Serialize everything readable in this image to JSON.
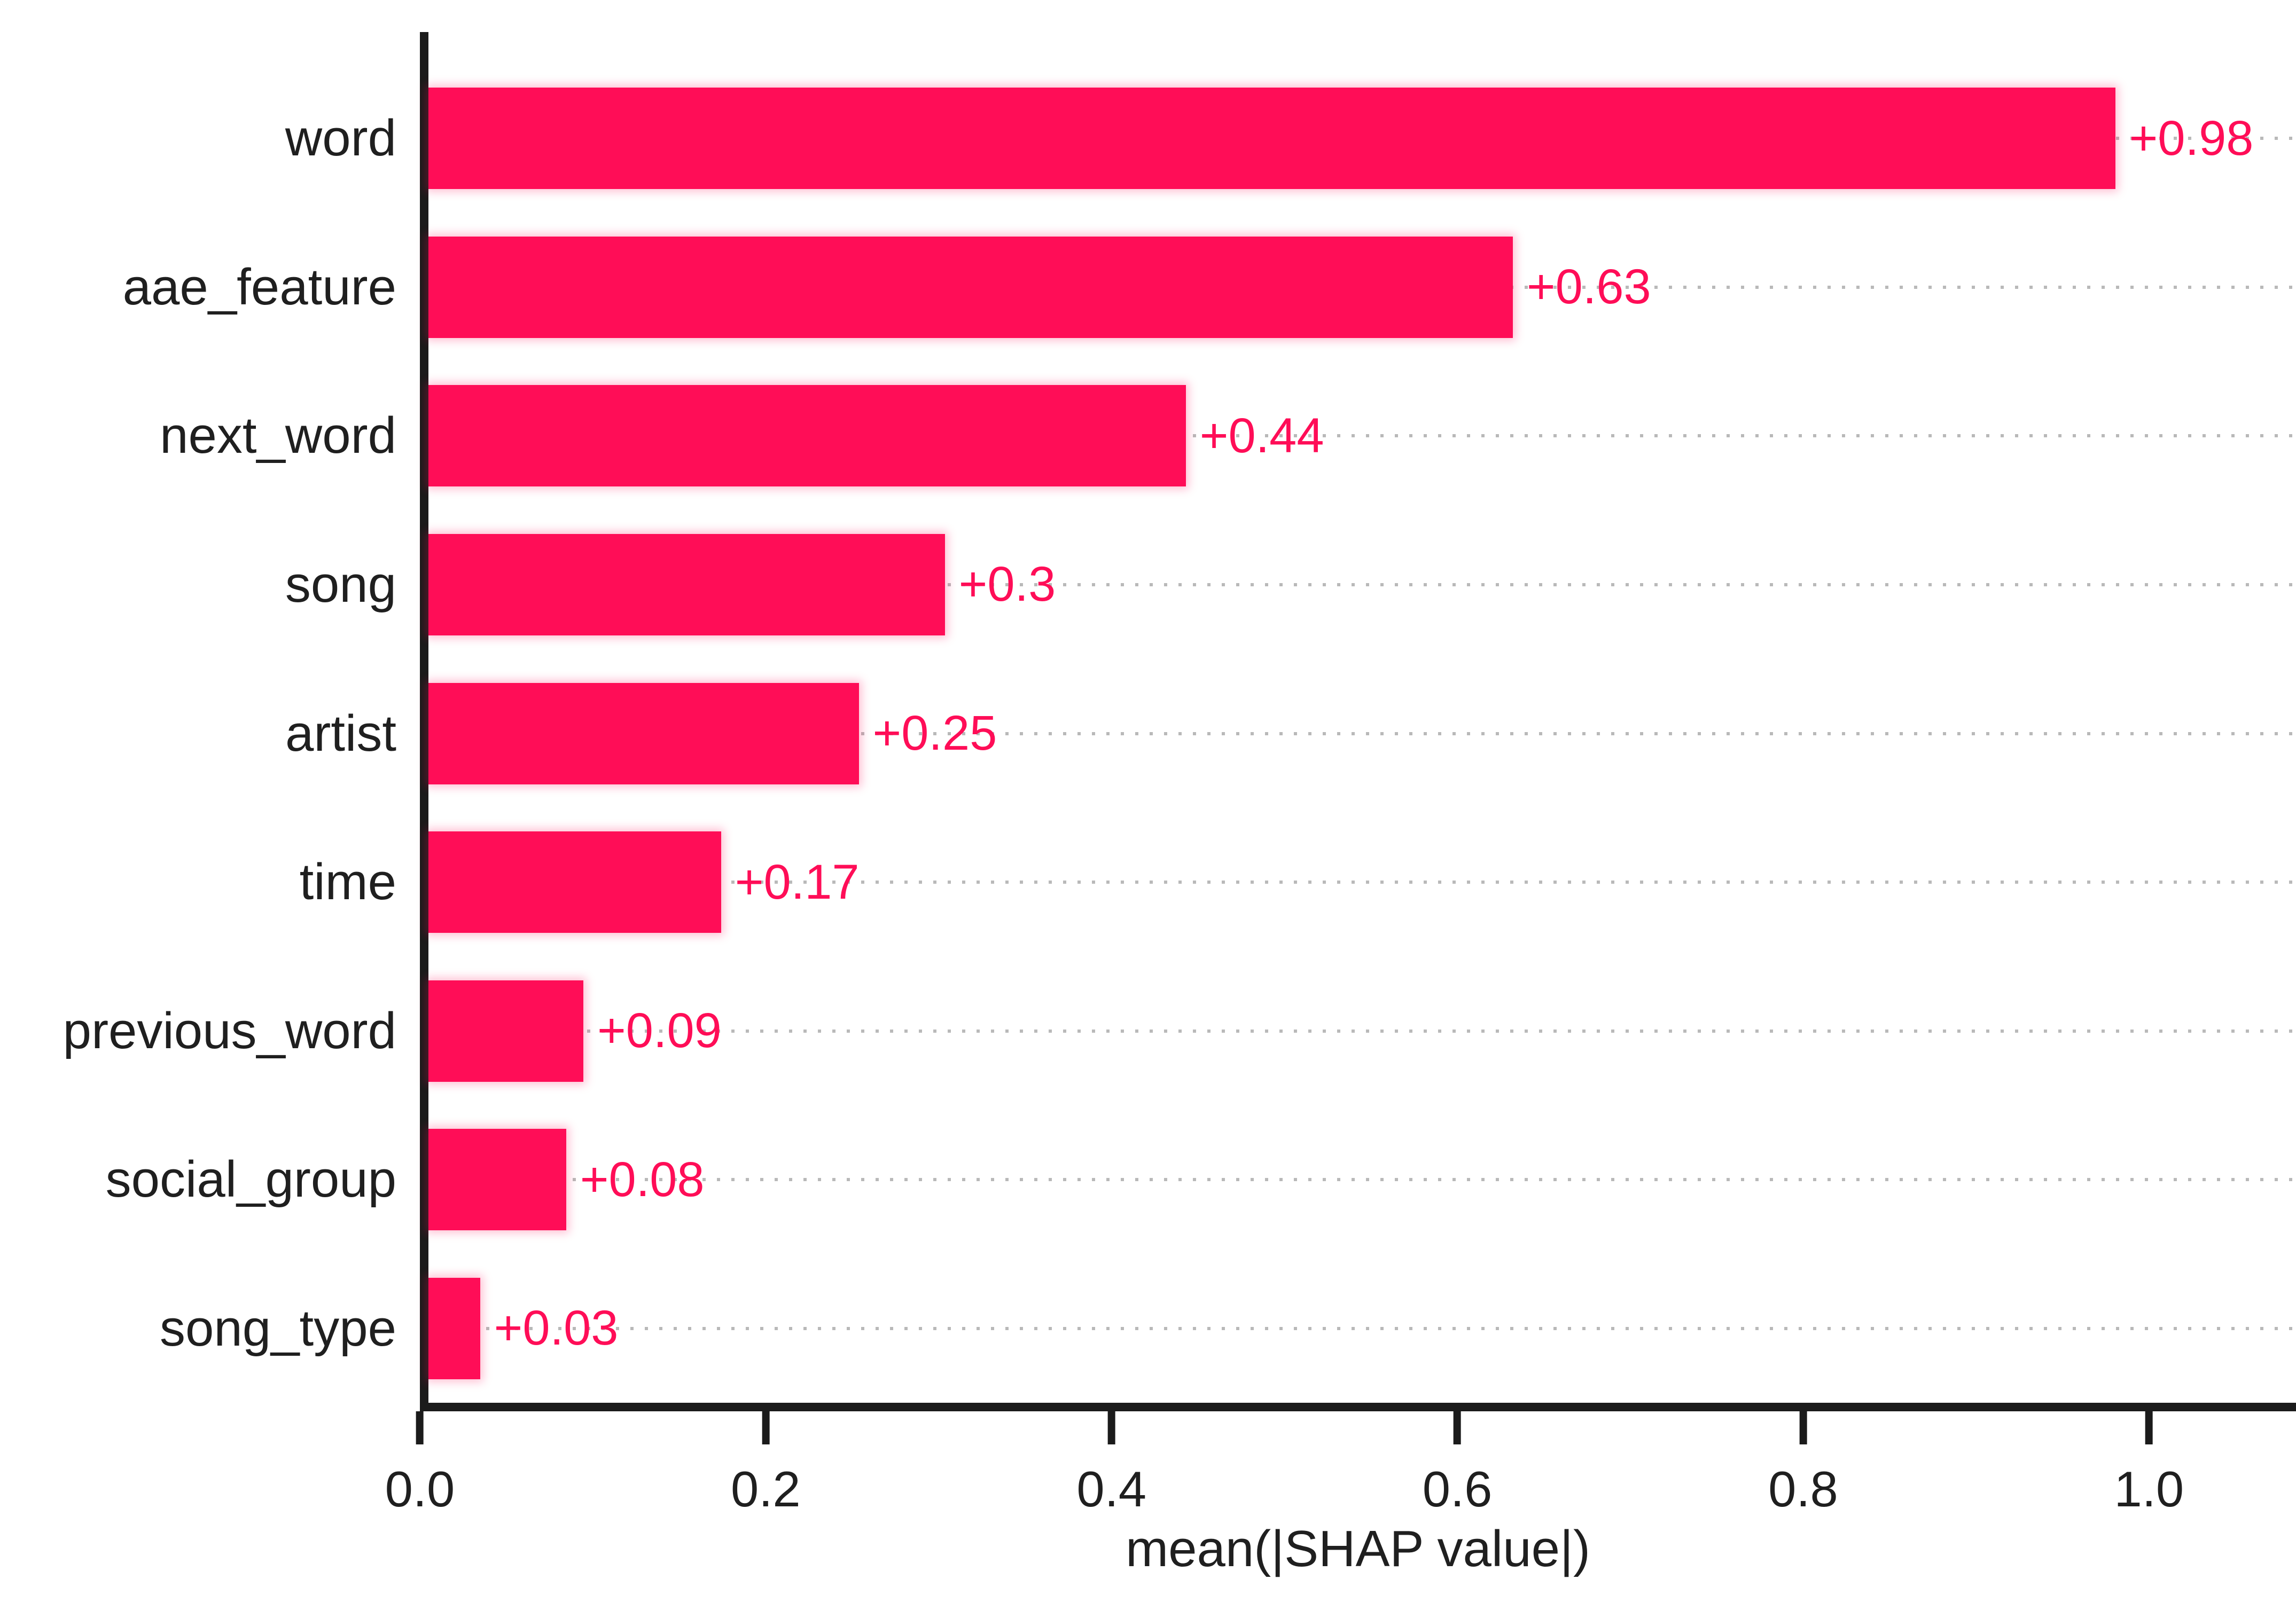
{
  "figure": {
    "background": "#ffffff",
    "bar_color": "#ff0d57",
    "grid_dot_color": "#b9b9b9",
    "axis_color": "#1b1b1b",
    "text_color": "#1f1f1f"
  },
  "chart_data": {
    "type": "bar",
    "orientation": "horizontal",
    "title": "",
    "xlabel": "mean(|SHAP value|)",
    "ylabel": "",
    "categories": [
      "word",
      "aae_feature",
      "next_word",
      "song",
      "artist",
      "time",
      "previous_word",
      "social_group",
      "song_type"
    ],
    "values": [
      0.98,
      0.63,
      0.44,
      0.3,
      0.25,
      0.17,
      0.09,
      0.08,
      0.03
    ],
    "value_labels": [
      "+0.98",
      "+0.63",
      "+0.44",
      "+0.3",
      "+0.25",
      "+0.17",
      "+0.09",
      "+0.08",
      "+0.03"
    ],
    "xticks": [
      0.0,
      0.2,
      0.4,
      0.6,
      0.8,
      1.0
    ],
    "xtick_labels": [
      "0.0",
      "0.2",
      "0.4",
      "0.6",
      "0.8",
      "1.0"
    ],
    "xlim": [
      0,
      1.085
    ],
    "grid": "horizontal-dotted",
    "legend": "none"
  }
}
